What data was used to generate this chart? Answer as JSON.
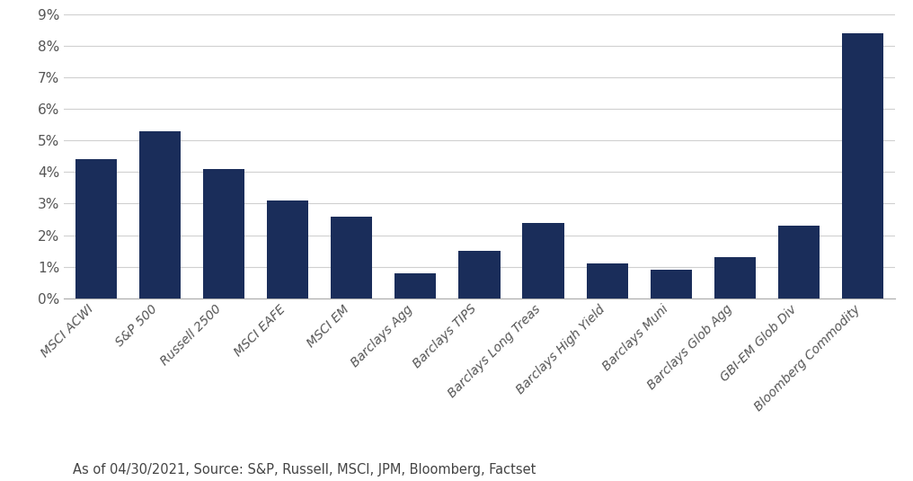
{
  "categories": [
    "MSCI ACWI",
    "S&P 500",
    "Russell 2500",
    "MSCI EAFE",
    "MSCI EM",
    "Barclays Agg",
    "Barclays TIPS",
    "Barclays Long Treas",
    "Barclays High Yield",
    "Barclays Muni",
    "Barclays Glob Agg",
    "GBI-EM Glob Div",
    "Bloomberg Commodity"
  ],
  "values": [
    0.044,
    0.053,
    0.041,
    0.031,
    0.026,
    0.008,
    0.015,
    0.024,
    0.011,
    0.009,
    0.013,
    0.023,
    0.084
  ],
  "bar_color": "#1a2d5a",
  "ylim": [
    0,
    0.09
  ],
  "yticks": [
    0,
    0.01,
    0.02,
    0.03,
    0.04,
    0.05,
    0.06,
    0.07,
    0.08,
    0.09
  ],
  "ytick_labels": [
    "0%",
    "1%",
    "2%",
    "3%",
    "4%",
    "5%",
    "6%",
    "7%",
    "8%",
    "9%"
  ],
  "footnote": "As of 04/30/2021, Source: S&P, Russell, MSCI, JPM, Bloomberg, Factset",
  "background_color": "#ffffff",
  "grid_color": "#d0d0d0",
  "bar_width": 0.65,
  "label_fontsize": 10,
  "tick_fontsize": 11,
  "footnote_fontsize": 10.5
}
